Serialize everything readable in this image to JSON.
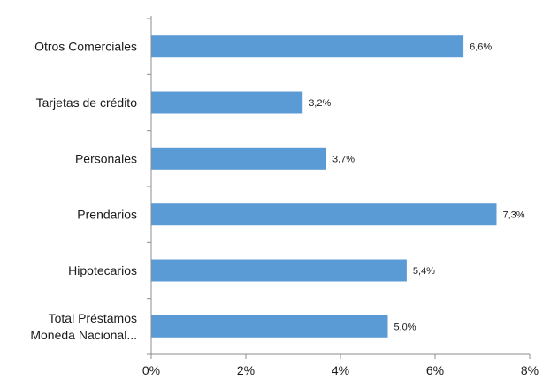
{
  "chart_data": {
    "type": "bar",
    "orientation": "horizontal",
    "categories": [
      "Otros Comerciales",
      "Tarjetas de crédito",
      "Personales",
      "Prendarios",
      "Hipotecarios",
      "Total Préstamos Moneda Nacional..."
    ],
    "category_label_lines": [
      [
        "Otros Comerciales"
      ],
      [
        "Tarjetas de crédito"
      ],
      [
        "Personales"
      ],
      [
        "Prendarios"
      ],
      [
        "Hipotecarios"
      ],
      [
        "Total Préstamos",
        "Moneda Nacional..."
      ]
    ],
    "values": [
      6.6,
      3.2,
      3.7,
      7.3,
      5.4,
      5.0
    ],
    "value_labels": [
      "6,6%",
      "3,2%",
      "3,7%",
      "7,3%",
      "5,4%",
      "5,0%"
    ],
    "xlim": [
      0,
      8
    ],
    "xticks": [
      0,
      2,
      4,
      6,
      8
    ],
    "xtick_labels": [
      "0%",
      "2%",
      "4%",
      "6%",
      "8%"
    ],
    "title": "",
    "xlabel": "",
    "ylabel": "",
    "grid": false,
    "legend": "none",
    "bar_color": "#5b9bd5"
  }
}
